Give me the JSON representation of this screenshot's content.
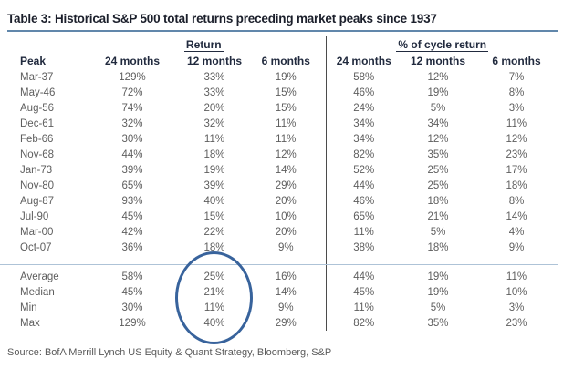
{
  "title": "Table 3: Historical S&P 500 total returns preceding market peaks since 1937",
  "source": "Source: BofA Merrill Lynch US Equity & Quant Strategy, Bloomberg, S&P",
  "colors": {
    "title_text": "#1b1f2b",
    "header_text": "#212a3e",
    "data_text": "#5e5e5e",
    "title_rule": "#6187ab",
    "summary_divider": "#aec3d7",
    "group_divider": "#4b4b4b",
    "ellipse_stroke": "#38639c"
  },
  "table": {
    "group_headers": [
      "Return",
      "% of cycle return"
    ],
    "column_headers": [
      "Peak",
      "24 months",
      "12 months",
      "6 months",
      "24 months",
      "12 months",
      "6 months"
    ],
    "rows": [
      {
        "peak": "Mar-37",
        "return": [
          "129%",
          "33%",
          "19%"
        ],
        "pct_of_cycle": [
          "58%",
          "12%",
          "7%"
        ]
      },
      {
        "peak": "May-46",
        "return": [
          "72%",
          "33%",
          "15%"
        ],
        "pct_of_cycle": [
          "46%",
          "19%",
          "8%"
        ]
      },
      {
        "peak": "Aug-56",
        "return": [
          "74%",
          "20%",
          "15%"
        ],
        "pct_of_cycle": [
          "24%",
          "5%",
          "3%"
        ]
      },
      {
        "peak": "Dec-61",
        "return": [
          "32%",
          "32%",
          "11%"
        ],
        "pct_of_cycle": [
          "34%",
          "34%",
          "11%"
        ]
      },
      {
        "peak": "Feb-66",
        "return": [
          "30%",
          "11%",
          "11%"
        ],
        "pct_of_cycle": [
          "34%",
          "12%",
          "12%"
        ]
      },
      {
        "peak": "Nov-68",
        "return": [
          "44%",
          "18%",
          "12%"
        ],
        "pct_of_cycle": [
          "82%",
          "35%",
          "23%"
        ]
      },
      {
        "peak": "Jan-73",
        "return": [
          "39%",
          "19%",
          "14%"
        ],
        "pct_of_cycle": [
          "52%",
          "25%",
          "17%"
        ]
      },
      {
        "peak": "Nov-80",
        "return": [
          "65%",
          "39%",
          "29%"
        ],
        "pct_of_cycle": [
          "44%",
          "25%",
          "18%"
        ]
      },
      {
        "peak": "Aug-87",
        "return": [
          "93%",
          "40%",
          "20%"
        ],
        "pct_of_cycle": [
          "46%",
          "18%",
          "8%"
        ]
      },
      {
        "peak": "Jul-90",
        "return": [
          "45%",
          "15%",
          "10%"
        ],
        "pct_of_cycle": [
          "65%",
          "21%",
          "14%"
        ]
      },
      {
        "peak": "Mar-00",
        "return": [
          "42%",
          "22%",
          "20%"
        ],
        "pct_of_cycle": [
          "11%",
          "5%",
          "4%"
        ]
      },
      {
        "peak": "Oct-07",
        "return": [
          "36%",
          "18%",
          "9%"
        ],
        "pct_of_cycle": [
          "38%",
          "18%",
          "9%"
        ]
      }
    ],
    "summary_rows": [
      {
        "peak": "Average",
        "return": [
          "58%",
          "25%",
          "16%"
        ],
        "pct_of_cycle": [
          "44%",
          "19%",
          "11%"
        ]
      },
      {
        "peak": "Median",
        "return": [
          "45%",
          "21%",
          "14%"
        ],
        "pct_of_cycle": [
          "45%",
          "19%",
          "10%"
        ]
      },
      {
        "peak": "Min",
        "return": [
          "30%",
          "11%",
          "9%"
        ],
        "pct_of_cycle": [
          "11%",
          "5%",
          "3%"
        ]
      },
      {
        "peak": "Max",
        "return": [
          "129%",
          "40%",
          "29%"
        ],
        "pct_of_cycle": [
          "82%",
          "35%",
          "23%"
        ]
      }
    ],
    "annotation": {
      "shape": "ellipse",
      "highlights": "Return 12 months summary values (25%, 21%, 11%, 40%)",
      "color": "#38639c"
    }
  },
  "chart_data": {
    "type": "table",
    "title": "Table 3: Historical S&P 500 total returns preceding market peaks since 1937",
    "column_groups": [
      "Return",
      "% of cycle return"
    ],
    "columns": [
      "Peak",
      "Return 24 months",
      "Return 12 months",
      "Return 6 months",
      "% of cycle return 24 months",
      "% of cycle return 12 months",
      "% of cycle return 6 months"
    ],
    "rows": [
      [
        "Mar-37",
        129,
        33,
        19,
        58,
        12,
        7
      ],
      [
        "May-46",
        72,
        33,
        15,
        46,
        19,
        8
      ],
      [
        "Aug-56",
        74,
        20,
        15,
        24,
        5,
        3
      ],
      [
        "Dec-61",
        32,
        32,
        11,
        34,
        34,
        11
      ],
      [
        "Feb-66",
        30,
        11,
        11,
        34,
        12,
        12
      ],
      [
        "Nov-68",
        44,
        18,
        12,
        82,
        35,
        23
      ],
      [
        "Jan-73",
        39,
        19,
        14,
        52,
        25,
        17
      ],
      [
        "Nov-80",
        65,
        39,
        29,
        44,
        25,
        18
      ],
      [
        "Aug-87",
        93,
        40,
        20,
        46,
        18,
        8
      ],
      [
        "Jul-90",
        45,
        15,
        10,
        65,
        21,
        14
      ],
      [
        "Mar-00",
        42,
        22,
        20,
        11,
        5,
        4
      ],
      [
        "Oct-07",
        36,
        18,
        9,
        38,
        18,
        9
      ]
    ],
    "summary": [
      [
        "Average",
        58,
        25,
        16,
        44,
        19,
        11
      ],
      [
        "Median",
        45,
        21,
        14,
        45,
        19,
        10
      ],
      [
        "Min",
        30,
        11,
        9,
        11,
        5,
        3
      ],
      [
        "Max",
        129,
        40,
        29,
        82,
        35,
        23
      ]
    ],
    "units": "percent",
    "annotation": "Blue ellipse circles the Return 12-months column of the summary rows",
    "source": "Source: BofA Merrill Lynch US Equity & Quant Strategy, Bloomberg, S&P"
  }
}
